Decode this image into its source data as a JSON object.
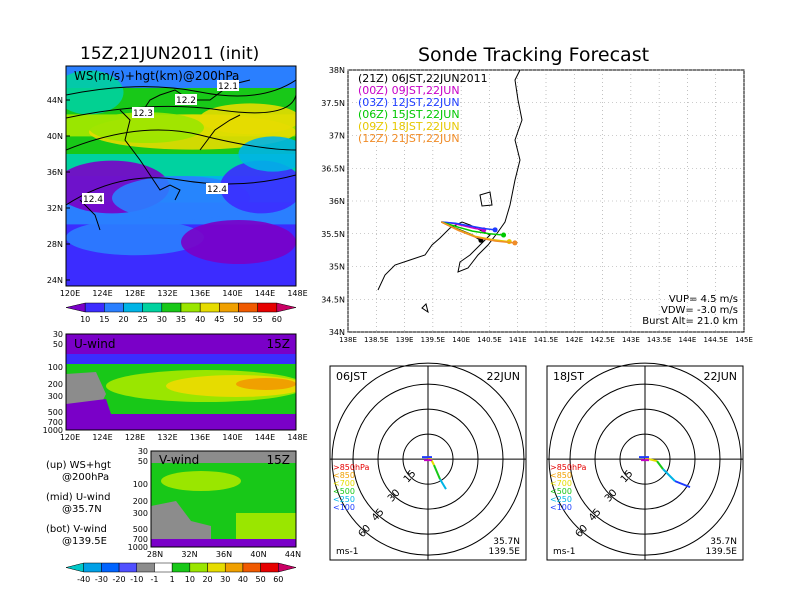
{
  "left_title": "15Z,21JUN2011 (init)",
  "right_title": "Sonde Tracking Forecast",
  "map_panel": {
    "overlay_label": "WS(m/s)+hgt(km)@200hPa",
    "lat_ticks": [
      "44N",
      "40N",
      "36N",
      "32N",
      "28N",
      "24N"
    ],
    "lon_ticks": [
      "120E",
      "124E",
      "128E",
      "132E",
      "136E",
      "140E",
      "144E",
      "148E"
    ],
    "contour_labels": [
      "12.1",
      "12.2",
      "12.3",
      "12.4",
      "12.4"
    ]
  },
  "ws_colorbar": {
    "labels": [
      "10",
      "15",
      "20",
      "25",
      "30",
      "35",
      "40",
      "45",
      "50",
      "55",
      "60"
    ],
    "colors": [
      "#7a00c8",
      "#3c2cff",
      "#2a7fff",
      "#00b4e6",
      "#00d2a0",
      "#18c818",
      "#9ae600",
      "#e6dc00",
      "#f0a000",
      "#f05a00",
      "#e60000",
      "#c80064"
    ]
  },
  "uwind_panel": {
    "label": "U-wind",
    "time": "15Z",
    "y_ticks": [
      "30",
      "50",
      "100",
      "200",
      "300",
      "500",
      "700",
      "1000"
    ],
    "x_ticks": [
      "120E",
      "124E",
      "128E",
      "132E",
      "136E",
      "140E",
      "144E",
      "148E"
    ]
  },
  "vwind_panel": {
    "label": "V-wind",
    "time": "15Z",
    "y_ticks": [
      "30",
      "50",
      "100",
      "200",
      "300",
      "500",
      "700",
      "1000"
    ],
    "x_ticks": [
      "28N",
      "32N",
      "36N",
      "40N",
      "44N"
    ]
  },
  "notes": [
    {
      "a": "(up) WS+hgt",
      "b": "@200hPa"
    },
    {
      "a": "(mid) U-wind",
      "b": "@35.7N"
    },
    {
      "a": "(bot) V-wind",
      "b": "@139.5E"
    }
  ],
  "wind_colorbar": {
    "labels": [
      "-40",
      "-30",
      "-20",
      "-10",
      "-1",
      "1",
      "10",
      "20",
      "30",
      "40",
      "50",
      "60"
    ],
    "colors": [
      "#00c8c8",
      "#00a0e6",
      "#0064ff",
      "#5050ff",
      "#8c8c8c",
      "#ffffff",
      "#18c818",
      "#9ae600",
      "#e6dc00",
      "#f0a000",
      "#f05a00",
      "#e60000",
      "#c80064"
    ]
  },
  "track_panel": {
    "lat_ticks": [
      "38N",
      "37.5N",
      "37N",
      "36.5N",
      "36N",
      "35.5N",
      "35N",
      "34.5N",
      "34N"
    ],
    "lon_ticks": [
      "138E",
      "138.5E",
      "139E",
      "139.5E",
      "140E",
      "140.5E",
      "141E",
      "141.5E",
      "142E",
      "142.5E",
      "143E",
      "143.5E",
      "144E",
      "144.5E",
      "145E"
    ],
    "legend": [
      {
        "text": "(21Z) 06JST,22JUN2011",
        "color": "#000000"
      },
      {
        "text": "(00Z) 09JST,22JUN",
        "color": "#c800c8"
      },
      {
        "text": "(03Z) 12JST,22JUN",
        "color": "#1e3cff"
      },
      {
        "text": "(06Z) 15JST,22JUN",
        "color": "#00c800"
      },
      {
        "text": "(09Z) 18JST,22JUN",
        "color": "#e6c800"
      },
      {
        "text": "(12Z) 21JST,22JUN",
        "color": "#f08c28"
      }
    ],
    "params": [
      "VUP= 4.5 m/s",
      "VDW= -3.0 m/s",
      "Burst Alt= 21.0 km"
    ]
  },
  "hodographs": [
    {
      "time": "06JST",
      "date": "22JUN",
      "ring_labels": [
        "15",
        "30",
        "45",
        "60"
      ],
      "levels": [
        ">850hPa",
        "<850",
        "<700",
        "<500",
        "<250",
        "<100"
      ],
      "units": "ms-1",
      "loc1": "35.7N",
      "loc2": "139.5E"
    },
    {
      "time": "18JST",
      "date": "22JUN",
      "ring_labels": [
        "15",
        "30",
        "45",
        "60"
      ],
      "levels": [
        ">850hPa",
        "<850",
        "<700",
        "<500",
        "<250",
        "<100"
      ],
      "units": "ms-1",
      "loc1": "35.7N",
      "loc2": "139.5E"
    }
  ],
  "level_colors": [
    "#e60000",
    "#f0a000",
    "#e6dc00",
    "#18c818",
    "#00b4e6",
    "#1e3cff"
  ],
  "chart_data": {
    "type": "line",
    "title": "Sonde Tracking Forecast",
    "series": [
      {
        "name": "(21Z) 06JST,22JUN2011",
        "color": "#000000",
        "x": [
          139.65,
          139.8,
          140.0,
          140.2,
          140.35
        ],
        "y": [
          35.68,
          35.62,
          35.55,
          35.48,
          35.4
        ]
      },
      {
        "name": "(00Z) 09JST,22JUN",
        "color": "#c800c8",
        "x": [
          139.65,
          139.85,
          140.05,
          140.25,
          140.4
        ],
        "y": [
          35.68,
          35.66,
          35.62,
          35.58,
          35.56
        ]
      },
      {
        "name": "(03Z) 12JST,22JUN",
        "color": "#1e3cff",
        "x": [
          139.65,
          139.9,
          140.15,
          140.4,
          140.6
        ],
        "y": [
          35.68,
          35.66,
          35.62,
          35.58,
          35.56
        ]
      },
      {
        "name": "(06Z) 15JST,22JUN",
        "color": "#00c800",
        "x": [
          139.65,
          139.95,
          140.2,
          140.5,
          140.75
        ],
        "y": [
          35.68,
          35.6,
          35.54,
          35.5,
          35.48
        ]
      },
      {
        "name": "(09Z) 18JST,22JUN",
        "color": "#e6c800",
        "x": [
          139.65,
          139.95,
          140.25,
          140.55,
          140.85
        ],
        "y": [
          35.68,
          35.56,
          35.46,
          35.41,
          35.38
        ]
      },
      {
        "name": "(12Z) 21JST,22JUN",
        "color": "#f08c28",
        "x": [
          139.65,
          139.95,
          140.25,
          140.6,
          140.95
        ],
        "y": [
          35.68,
          35.55,
          35.45,
          35.39,
          35.36
        ]
      }
    ],
    "xlim": [
      138,
      145
    ],
    "ylim": [
      34,
      38
    ]
  }
}
